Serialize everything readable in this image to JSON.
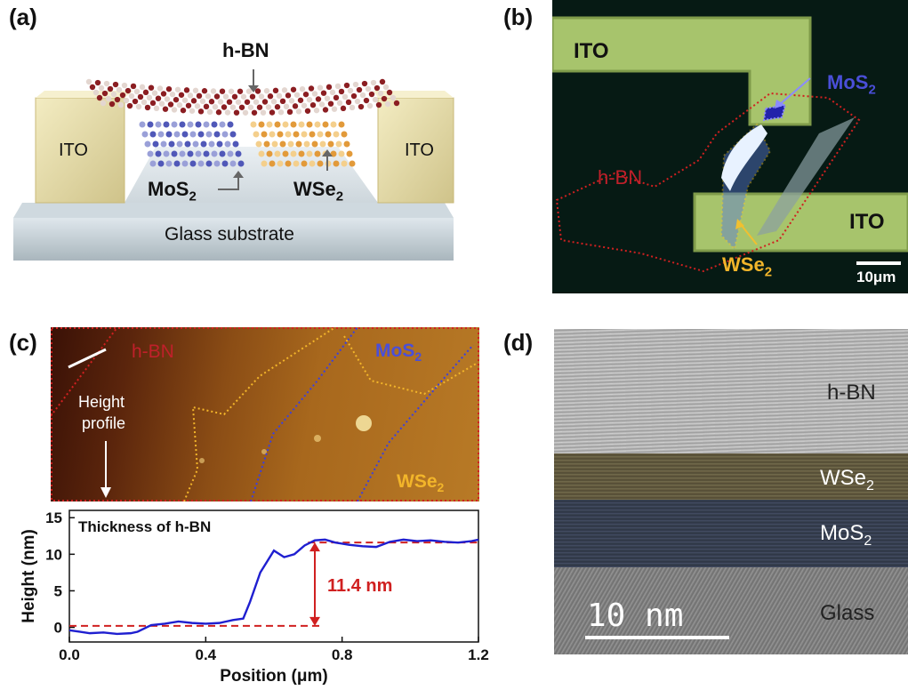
{
  "panels": {
    "a": {
      "letter": "(a)",
      "hbn": "h-BN",
      "ito_left": "ITO",
      "ito_right": "ITO",
      "mos2": "MoS",
      "wse2": "WSe",
      "sub": "2",
      "substrate": "Glass substrate"
    },
    "b": {
      "letter": "(b)",
      "ito_top": "ITO",
      "ito_bottom": "ITO",
      "mos2": "MoS",
      "hbn": "h-BN",
      "wse2": "WSe",
      "sub": "2",
      "scalebar": "10μm"
    },
    "c": {
      "letter": "(c)",
      "hbn": "h-BN",
      "mos2": "MoS",
      "wse2": "WSe",
      "sub": "2",
      "height_profile_1": "Height",
      "height_profile_2": "profile",
      "colors": {
        "hbn": "#c0202a",
        "mos2": "#4a4fd8",
        "wse2": "#f2b52a"
      }
    },
    "d": {
      "letter": "(d)",
      "hbn": "h-BN",
      "wse2": "WSe",
      "mos2": "MoS",
      "sub": "2",
      "glass": "Glass",
      "scalebar": "10 nm"
    }
  },
  "chart_data": {
    "type": "line",
    "title": "Thickness of h-BN",
    "xlabel": "Position (μm)",
    "ylabel": "Height (nm)",
    "xlim": [
      0.0,
      1.2
    ],
    "ylim": [
      -2,
      16
    ],
    "xticks": [
      "0.0",
      "0.4",
      "0.8",
      "1.2"
    ],
    "yticks": [
      "0",
      "5",
      "10",
      "15"
    ],
    "annotation": "11.4 nm",
    "baseline_low": 0.2,
    "baseline_high": 11.6,
    "series": [
      {
        "color": "#1f1fd0",
        "x": [
          0.0,
          0.03,
          0.06,
          0.1,
          0.14,
          0.18,
          0.2,
          0.24,
          0.28,
          0.32,
          0.36,
          0.4,
          0.44,
          0.48,
          0.51,
          0.53,
          0.56,
          0.6,
          0.63,
          0.66,
          0.69,
          0.72,
          0.75,
          0.78,
          0.82,
          0.86,
          0.9,
          0.94,
          0.98,
          1.02,
          1.06,
          1.1,
          1.14,
          1.18,
          1.2
        ],
        "y": [
          -0.4,
          -0.6,
          -0.8,
          -0.7,
          -0.9,
          -0.8,
          -0.6,
          0.3,
          0.5,
          0.8,
          0.6,
          0.5,
          0.6,
          1.0,
          1.2,
          3.5,
          7.5,
          10.5,
          9.6,
          10.0,
          11.2,
          11.9,
          12.0,
          11.6,
          11.3,
          11.1,
          11.0,
          11.7,
          12.0,
          11.8,
          11.9,
          11.7,
          11.6,
          11.8,
          12.0
        ]
      }
    ]
  }
}
